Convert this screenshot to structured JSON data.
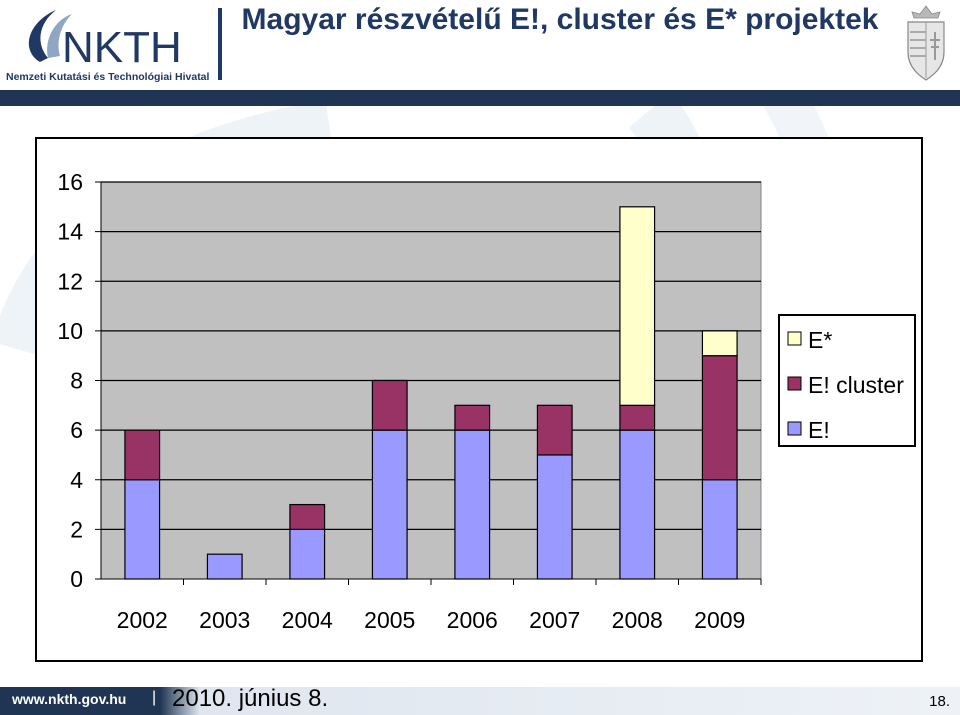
{
  "header": {
    "title": "Magyar részvételű E!, cluster és E* projektek",
    "logo_text": "NKTH",
    "logo_subtitle": "Nemzeti Kutatási és Technológiai Hivatal"
  },
  "footer": {
    "url": "www.nkth.gov.hu",
    "separator": "|",
    "date": "2010. június 8.",
    "page_number": "18."
  },
  "colors": {
    "navy": "#1f3553",
    "title": "#1f3864",
    "e_bang": "#9999ff",
    "e_cluster": "#993366",
    "e_star": "#ffffcc",
    "plot_bg": "#c0c0c0"
  },
  "chart_data": {
    "type": "bar",
    "stacked": true,
    "categories": [
      "2002",
      "2003",
      "2004",
      "2005",
      "2006",
      "2007",
      "2008",
      "2009"
    ],
    "series": [
      {
        "name": "E!",
        "values": [
          4,
          1,
          2,
          6,
          6,
          5,
          6,
          4
        ],
        "color": "#9999ff"
      },
      {
        "name": "E! cluster",
        "values": [
          2,
          0,
          1,
          2,
          1,
          2,
          1,
          5
        ],
        "color": "#993366"
      },
      {
        "name": "E*",
        "values": [
          0,
          0,
          0,
          0,
          0,
          0,
          8,
          1
        ],
        "color": "#ffffcc"
      }
    ],
    "yticks": [
      0,
      2,
      4,
      6,
      8,
      10,
      12,
      14,
      16
    ],
    "ylim": [
      0,
      16
    ],
    "grid": true,
    "legend_position": "right",
    "legend_order": [
      "E*",
      "E! cluster",
      "E!"
    ]
  }
}
